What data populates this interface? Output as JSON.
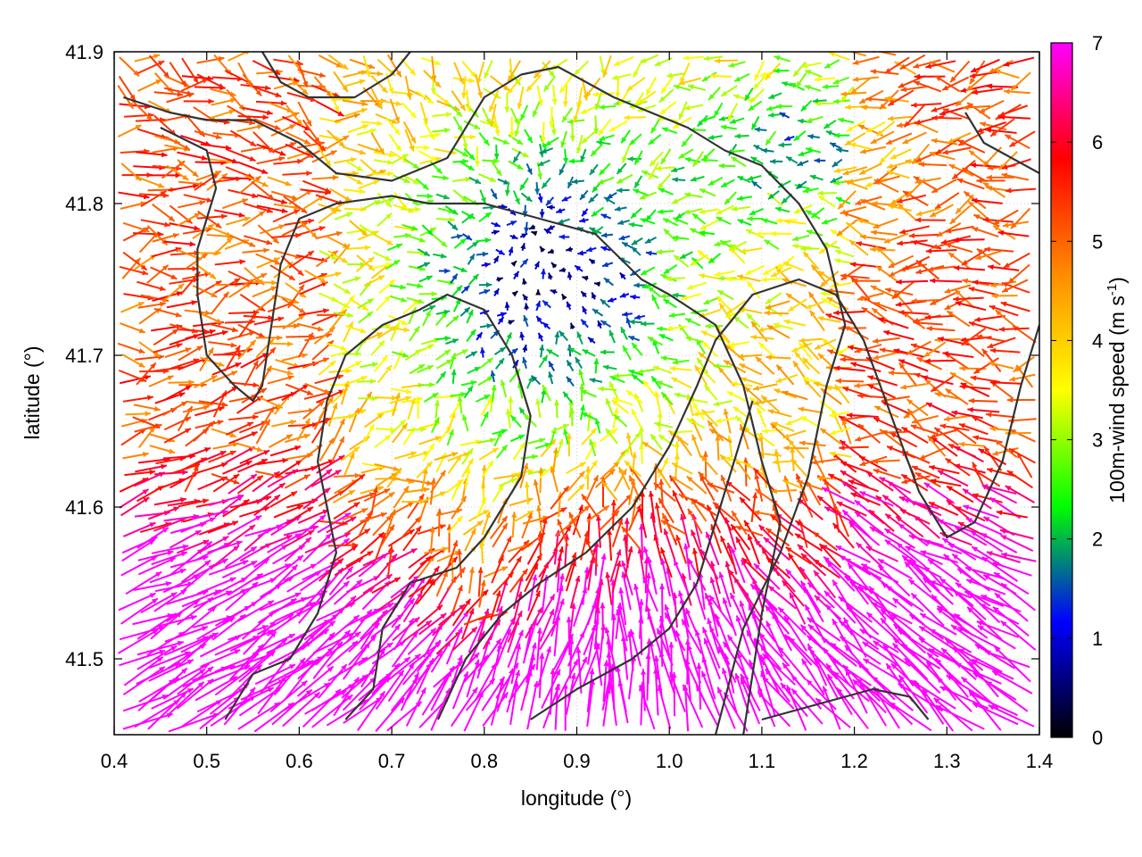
{
  "chart_data": {
    "type": "vector-field",
    "xlabel": "longitude (°)",
    "ylabel": "latitude (°)",
    "colorbar_label": "100m-wind speed (m s-1)",
    "colorbar_label_parts": {
      "main": "100m-wind speed (m s",
      "superscript": "-1",
      "close": ")"
    },
    "xlim": [
      0.4,
      1.4
    ],
    "ylim": [
      41.45,
      41.9
    ],
    "xticks": [
      "0.4",
      "0.5",
      "0.6",
      "0.7",
      "0.8",
      "0.9",
      "1.0",
      "1.1",
      "1.2",
      "1.3",
      "1.4"
    ],
    "yticks": [
      "41.5",
      "41.6",
      "41.7",
      "41.8",
      "41.9"
    ],
    "colorbar": {
      "range": [
        0,
        7
      ],
      "ticks": [
        "0",
        "1",
        "2",
        "3",
        "4",
        "5",
        "6",
        "7"
      ],
      "colors": [
        "#000000",
        "#0000ff",
        "#00ff00",
        "#ffff00",
        "#ff8c00",
        "#ff0000",
        "#ff00ff"
      ]
    },
    "contour_color": "#333333",
    "grid": true,
    "contours": [
      [
        [
          0.41,
          41.87
        ],
        [
          0.46,
          41.86
        ],
        [
          0.5,
          41.855
        ],
        [
          0.55,
          41.855
        ],
        [
          0.6,
          41.84
        ],
        [
          0.64,
          41.82
        ],
        [
          0.7,
          41.815
        ],
        [
          0.76,
          41.83
        ],
        [
          0.8,
          41.87
        ],
        [
          0.84,
          41.885
        ],
        [
          0.88,
          41.89
        ],
        [
          0.94,
          41.87
        ],
        [
          1.02,
          41.85
        ],
        [
          1.06,
          41.835
        ],
        [
          1.1,
          41.825
        ],
        [
          1.14,
          41.8
        ],
        [
          1.17,
          41.77
        ],
        [
          1.19,
          41.72
        ],
        [
          1.17,
          41.68
        ],
        [
          1.15,
          41.62
        ],
        [
          1.12,
          41.57
        ],
        [
          1.08,
          41.52
        ],
        [
          1.05,
          41.45
        ]
      ],
      [
        [
          0.45,
          41.85
        ],
        [
          0.5,
          41.835
        ],
        [
          0.51,
          41.81
        ],
        [
          0.5,
          41.79
        ],
        [
          0.49,
          41.77
        ],
        [
          0.49,
          41.74
        ],
        [
          0.5,
          41.7
        ],
        [
          0.53,
          41.68
        ],
        [
          0.55,
          41.67
        ],
        [
          0.56,
          41.68
        ],
        [
          0.57,
          41.72
        ],
        [
          0.58,
          41.76
        ],
        [
          0.6,
          41.79
        ],
        [
          0.64,
          41.8
        ],
        [
          0.7,
          41.805
        ],
        [
          0.74,
          41.8
        ],
        [
          0.8,
          41.8
        ],
        [
          0.86,
          41.79
        ],
        [
          0.92,
          41.78
        ],
        [
          0.97,
          41.75
        ],
        [
          1.0,
          41.74
        ],
        [
          1.05,
          41.72
        ],
        [
          1.08,
          41.68
        ],
        [
          1.1,
          41.63
        ],
        [
          1.12,
          41.59
        ],
        [
          1.1,
          41.53
        ],
        [
          1.08,
          41.45
        ]
      ],
      [
        [
          0.52,
          41.46
        ],
        [
          0.55,
          41.49
        ],
        [
          0.59,
          41.5
        ],
        [
          0.62,
          41.53
        ],
        [
          0.64,
          41.57
        ],
        [
          0.63,
          41.6
        ],
        [
          0.62,
          41.63
        ],
        [
          0.63,
          41.67
        ],
        [
          0.65,
          41.7
        ],
        [
          0.69,
          41.72
        ],
        [
          0.73,
          41.73
        ],
        [
          0.76,
          41.74
        ],
        [
          0.8,
          41.73
        ],
        [
          0.83,
          41.7
        ],
        [
          0.85,
          41.66
        ],
        [
          0.84,
          41.62
        ],
        [
          0.8,
          41.58
        ],
        [
          0.77,
          41.56
        ],
        [
          0.72,
          41.55
        ],
        [
          0.69,
          41.52
        ],
        [
          0.68,
          41.48
        ],
        [
          0.65,
          41.46
        ]
      ],
      [
        [
          0.75,
          41.46
        ],
        [
          0.78,
          41.5
        ],
        [
          0.82,
          41.53
        ],
        [
          0.86,
          41.55
        ],
        [
          0.91,
          41.57
        ],
        [
          0.96,
          41.6
        ],
        [
          1.0,
          41.64
        ],
        [
          1.03,
          41.68
        ],
        [
          1.05,
          41.71
        ],
        [
          1.09,
          41.74
        ],
        [
          1.14,
          41.75
        ],
        [
          1.18,
          41.74
        ],
        [
          1.21,
          41.71
        ],
        [
          1.24,
          41.66
        ],
        [
          1.27,
          41.61
        ],
        [
          1.3,
          41.58
        ],
        [
          1.33,
          41.59
        ],
        [
          1.36,
          41.63
        ],
        [
          1.38,
          41.68
        ],
        [
          1.4,
          41.72
        ]
      ],
      [
        [
          0.85,
          41.46
        ],
        [
          0.9,
          41.48
        ],
        [
          0.96,
          41.5
        ],
        [
          1.0,
          41.52
        ],
        [
          1.03,
          41.55
        ],
        [
          1.05,
          41.59
        ],
        [
          1.07,
          41.63
        ],
        [
          1.09,
          41.67
        ]
      ],
      [
        [
          1.1,
          41.46
        ],
        [
          1.16,
          41.47
        ],
        [
          1.22,
          41.48
        ],
        [
          1.26,
          41.475
        ],
        [
          1.28,
          41.46
        ]
      ],
      [
        [
          1.32,
          41.86
        ],
        [
          1.34,
          41.84
        ],
        [
          1.37,
          41.83
        ],
        [
          1.4,
          41.82
        ]
      ],
      [
        [
          0.56,
          41.9
        ],
        [
          0.58,
          41.88
        ],
        [
          0.61,
          41.87
        ],
        [
          0.66,
          41.87
        ],
        [
          0.7,
          41.885
        ],
        [
          0.72,
          41.9
        ]
      ]
    ]
  }
}
